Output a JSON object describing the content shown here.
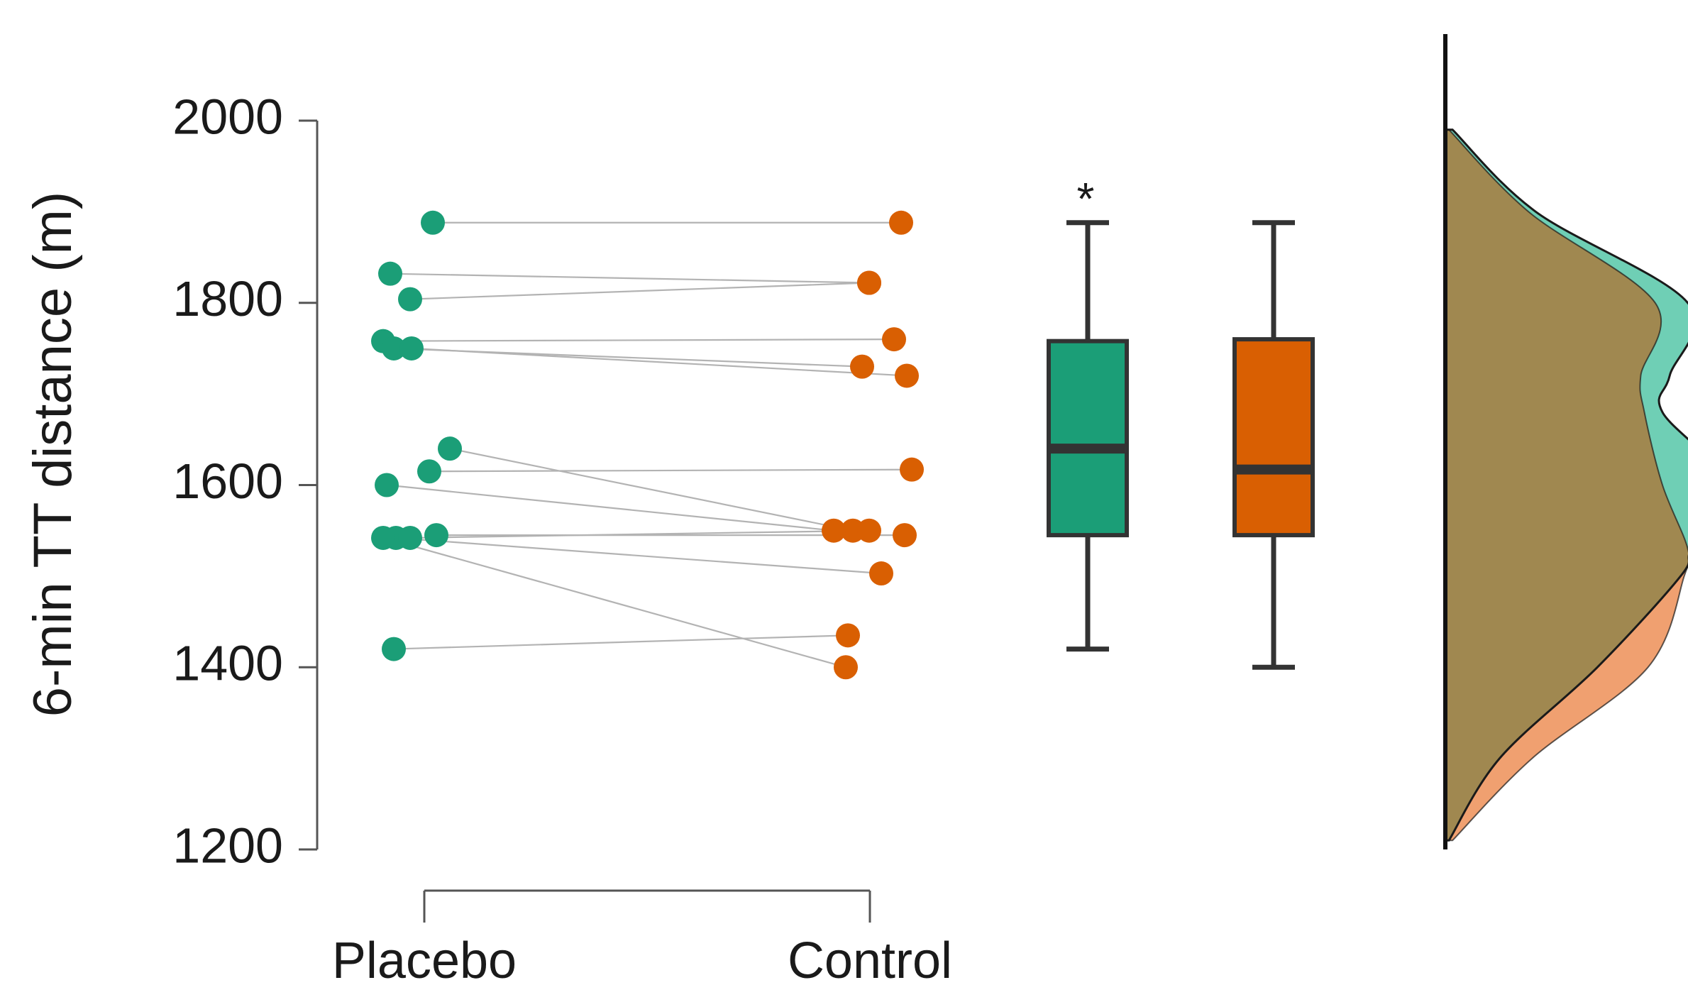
{
  "chart_data": {
    "type": "raincloud",
    "title": "",
    "ylabel": "6-min TT distance (m)",
    "xlabel": "",
    "ylim": [
      1200,
      2000
    ],
    "yticks": [
      1200,
      1400,
      1600,
      1800,
      2000
    ],
    "categories": [
      "Placebo",
      "Control"
    ],
    "colors": {
      "Placebo": "#1b9e77",
      "Control": "#d95f02",
      "placebo_density": "#6fcfb5",
      "control_density": "#f0a070",
      "overlap_density": "#a08850",
      "connector": "#b3b3b3",
      "box_edge": "#333333"
    },
    "pairs": [
      {
        "placebo": 1888,
        "control": 1888
      },
      {
        "placebo": 1832,
        "control": 1822
      },
      {
        "placebo": 1804,
        "control": 1822
      },
      {
        "placebo": 1758,
        "control": 1760
      },
      {
        "placebo": 1750,
        "control": 1730
      },
      {
        "placebo": 1750,
        "control": 1720
      },
      {
        "placebo": 1640,
        "control": 1550
      },
      {
        "placebo": 1615,
        "control": 1617
      },
      {
        "placebo": 1600,
        "control": 1550
      },
      {
        "placebo": 1545,
        "control": 1545
      },
      {
        "placebo": 1542,
        "control": 1503
      },
      {
        "placebo": 1542,
        "control": 1550
      },
      {
        "placebo": 1542,
        "control": 1400
      },
      {
        "placebo": 1420,
        "control": 1435
      }
    ],
    "boxplots": [
      {
        "name": "Placebo",
        "min": 1420,
        "q1": 1545,
        "median": 1640,
        "q3": 1758,
        "max": 1888,
        "annotation": "*"
      },
      {
        "name": "Control",
        "min": 1400,
        "q1": 1545,
        "median": 1617,
        "q3": 1760,
        "max": 1888,
        "annotation": ""
      }
    ],
    "density": {
      "y": [
        1210,
        1300,
        1400,
        1500,
        1530,
        1600,
        1680,
        1720,
        1800,
        1900,
        1990
      ],
      "Placebo": [
        0.01,
        0.15,
        0.42,
        0.65,
        0.68,
        0.78,
        0.6,
        0.62,
        0.67,
        0.25,
        0.02
      ],
      "Control": [
        0.02,
        0.24,
        0.56,
        0.66,
        0.67,
        0.6,
        0.55,
        0.54,
        0.58,
        0.23,
        0.01
      ]
    }
  }
}
